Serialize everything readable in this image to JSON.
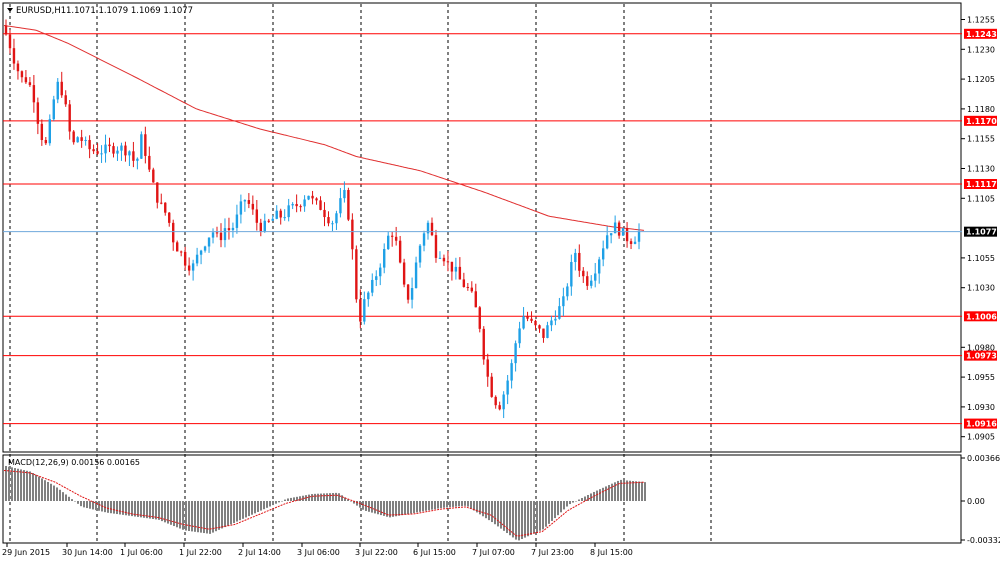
{
  "chart_data": {
    "type": "candlestick",
    "symbol_header": "EURUSD,H1",
    "ohlc_header": "1.1071 1.1079 1.1069 1.1077",
    "price_axis": {
      "range": [
        1.0893,
        1.1268
      ],
      "ticks": [
        "1.1255",
        "1.1230",
        "1.1205",
        "1.1180",
        "1.1155",
        "1.1130",
        "1.1105",
        "1.1055",
        "1.1030",
        "1.0980",
        "1.0955",
        "1.0930",
        "1.0905"
      ]
    },
    "levels": [
      {
        "label": "1.1243",
        "value": 1.1243
      },
      {
        "label": "1.1170",
        "value": 1.117
      },
      {
        "label": "1.1117",
        "value": 1.1117
      },
      {
        "label": "1.1006",
        "value": 1.1006
      },
      {
        "label": "1.0973",
        "value": 1.0973
      },
      {
        "label": "1.0916",
        "value": 1.0916
      }
    ],
    "current_price": {
      "label": "1.1077",
      "value": 1.1077
    },
    "time_labels": [
      "29 Jun 2015",
      "30 Jun 14:00",
      "1 Jul 06:00",
      "1 Jul 22:00",
      "2 Jul 14:00",
      "3 Jul 06:00",
      "3 Jul 22:00",
      "6 Jul 15:00",
      "7 Jul 07:00",
      "7 Jul 23:00",
      "8 Jul 15:00"
    ],
    "moving_average_path": [
      [
        0,
        1.125
      ],
      [
        0.05,
        1.1246
      ],
      [
        0.1,
        1.1235
      ],
      [
        0.2,
        1.1208
      ],
      [
        0.3,
        1.118
      ],
      [
        0.4,
        1.1163
      ],
      [
        0.5,
        1.115
      ],
      [
        0.55,
        1.114
      ],
      [
        0.65,
        1.1128
      ],
      [
        0.75,
        1.111
      ],
      [
        0.85,
        1.109
      ],
      [
        0.95,
        1.1081
      ],
      [
        1.0,
        1.1078
      ]
    ],
    "candle_path": [
      [
        0,
        1.125
      ],
      [
        0.01,
        1.1238
      ],
      [
        0.02,
        1.122
      ],
      [
        0.03,
        1.1205
      ],
      [
        0.04,
        1.1205
      ],
      [
        0.05,
        1.119
      ],
      [
        0.06,
        1.116
      ],
      [
        0.07,
        1.1148
      ],
      [
        0.08,
        1.1185
      ],
      [
        0.09,
        1.1205
      ],
      [
        0.1,
        1.118
      ],
      [
        0.11,
        1.1148
      ],
      [
        0.12,
        1.1158
      ],
      [
        0.13,
        1.115
      ],
      [
        0.14,
        1.1145
      ],
      [
        0.16,
        1.1145
      ],
      [
        0.18,
        1.1148
      ],
      [
        0.2,
        1.1145
      ],
      [
        0.21,
        1.1132
      ],
      [
        0.22,
        1.1158
      ],
      [
        0.23,
        1.113
      ],
      [
        0.24,
        1.111
      ],
      [
        0.25,
        1.1098
      ],
      [
        0.26,
        1.109
      ],
      [
        0.27,
        1.1068
      ],
      [
        0.28,
        1.106
      ],
      [
        0.29,
        1.105
      ],
      [
        0.3,
        1.1048
      ],
      [
        0.31,
        1.106
      ],
      [
        0.32,
        1.107
      ],
      [
        0.33,
        1.1078
      ],
      [
        0.34,
        1.107
      ],
      [
        0.35,
        1.108
      ],
      [
        0.36,
        1.1078
      ],
      [
        0.37,
        1.109
      ],
      [
        0.38,
        1.1105
      ],
      [
        0.39,
        1.1098
      ],
      [
        0.4,
        1.1085
      ],
      [
        0.41,
        1.108
      ],
      [
        0.42,
        1.1085
      ],
      [
        0.43,
        1.109
      ],
      [
        0.44,
        1.109
      ],
      [
        0.45,
        1.1095
      ],
      [
        0.46,
        1.1098
      ],
      [
        0.47,
        1.1103
      ],
      [
        0.48,
        1.111
      ],
      [
        0.49,
        1.11
      ],
      [
        0.5,
        1.1098
      ],
      [
        0.51,
        1.109
      ],
      [
        0.52,
        1.1085
      ],
      [
        0.53,
        1.11
      ],
      [
        0.54,
        1.111
      ],
      [
        0.55,
        1.106
      ],
      [
        0.56,
        1.1
      ],
      [
        0.57,
        1.102
      ],
      [
        0.58,
        1.103
      ],
      [
        0.59,
        1.1045
      ],
      [
        0.6,
        1.106
      ],
      [
        0.61,
        1.108
      ],
      [
        0.62,
        1.1065
      ],
      [
        0.63,
        1.103
      ],
      [
        0.64,
        1.102
      ],
      [
        0.65,
        1.105
      ],
      [
        0.66,
        1.1075
      ],
      [
        0.67,
        1.1085
      ],
      [
        0.68,
        1.106
      ],
      [
        0.69,
        1.106
      ],
      [
        0.7,
        1.105
      ],
      [
        0.71,
        1.1045
      ],
      [
        0.72,
        1.1035
      ],
      [
        0.73,
        1.103
      ],
      [
        0.74,
        1.102
      ],
      [
        0.75,
        1.0998
      ],
      [
        0.76,
        1.096
      ],
      [
        0.77,
        1.094
      ],
      [
        0.78,
        1.093
      ],
      [
        0.79,
        1.0945
      ],
      [
        0.8,
        1.0965
      ],
      [
        0.81,
        1.0995
      ],
      [
        0.82,
        1.1008
      ],
      [
        0.83,
        1.1
      ],
      [
        0.84,
        1.0995
      ],
      [
        0.85,
        1.099
      ],
      [
        0.86,
        1.1
      ],
      [
        0.87,
        1.101
      ],
      [
        0.88,
        1.1015
      ],
      [
        0.89,
        1.104
      ],
      [
        0.9,
        1.106
      ],
      [
        0.91,
        1.104
      ],
      [
        0.92,
        1.1035
      ],
      [
        0.93,
        1.1045
      ],
      [
        0.94,
        1.106
      ],
      [
        0.95,
        1.1075
      ],
      [
        0.96,
        1.1082
      ],
      [
        0.97,
        1.1078
      ],
      [
        0.98,
        1.1072
      ],
      [
        0.99,
        1.107
      ],
      [
        1.0,
        1.1077
      ]
    ],
    "macd": {
      "label": "MACD(12,26,9) 0.00156 0.00165",
      "range": [
        -0.00332,
        0.00366
      ],
      "ticks": [
        "0.00366",
        "0.00",
        "-0.00332"
      ],
      "histogram_path": [
        [
          0,
          0.003
        ],
        [
          0.04,
          0.0025
        ],
        [
          0.08,
          0.0012
        ],
        [
          0.12,
          -0.0005
        ],
        [
          0.16,
          -0.001
        ],
        [
          0.2,
          -0.0013
        ],
        [
          0.24,
          -0.0016
        ],
        [
          0.28,
          -0.0025
        ],
        [
          0.32,
          -0.0028
        ],
        [
          0.36,
          -0.0018
        ],
        [
          0.4,
          -0.0008
        ],
        [
          0.44,
          0.0002
        ],
        [
          0.48,
          0.0006
        ],
        [
          0.52,
          0.0007
        ],
        [
          0.56,
          -0.0008
        ],
        [
          0.6,
          -0.0014
        ],
        [
          0.64,
          -0.001
        ],
        [
          0.68,
          -0.0006
        ],
        [
          0.72,
          -0.0004
        ],
        [
          0.76,
          -0.0018
        ],
        [
          0.8,
          -0.0034
        ],
        [
          0.84,
          -0.0024
        ],
        [
          0.88,
          -0.0003
        ],
        [
          0.92,
          0.0008
        ],
        [
          0.96,
          0.0018
        ],
        [
          1.0,
          0.0016
        ]
      ],
      "signal_path": [
        [
          0,
          0.0026
        ],
        [
          0.04,
          0.0024
        ],
        [
          0.08,
          0.0016
        ],
        [
          0.12,
          0.0004
        ],
        [
          0.16,
          -0.0006
        ],
        [
          0.2,
          -0.0011
        ],
        [
          0.24,
          -0.0014
        ],
        [
          0.28,
          -0.002
        ],
        [
          0.32,
          -0.0024
        ],
        [
          0.36,
          -0.002
        ],
        [
          0.4,
          -0.0011
        ],
        [
          0.44,
          -0.0002
        ],
        [
          0.48,
          0.0004
        ],
        [
          0.52,
          0.0005
        ],
        [
          0.56,
          -0.0003
        ],
        [
          0.6,
          -0.0012
        ],
        [
          0.64,
          -0.0011
        ],
        [
          0.68,
          -0.0007
        ],
        [
          0.72,
          -0.0005
        ],
        [
          0.76,
          -0.0012
        ],
        [
          0.8,
          -0.003
        ],
        [
          0.84,
          -0.0026
        ],
        [
          0.88,
          -0.0008
        ],
        [
          0.92,
          0.0004
        ],
        [
          0.96,
          0.0015
        ],
        [
          1.0,
          0.0016
        ]
      ]
    },
    "colors": {
      "bull": "#1ea0e6",
      "bear": "#e01414",
      "level": "#ff0000",
      "ma": "#e03030",
      "current": "#6fa8dc",
      "hist": "#808080",
      "signal": "#e01414",
      "grid": "#000000"
    }
  }
}
